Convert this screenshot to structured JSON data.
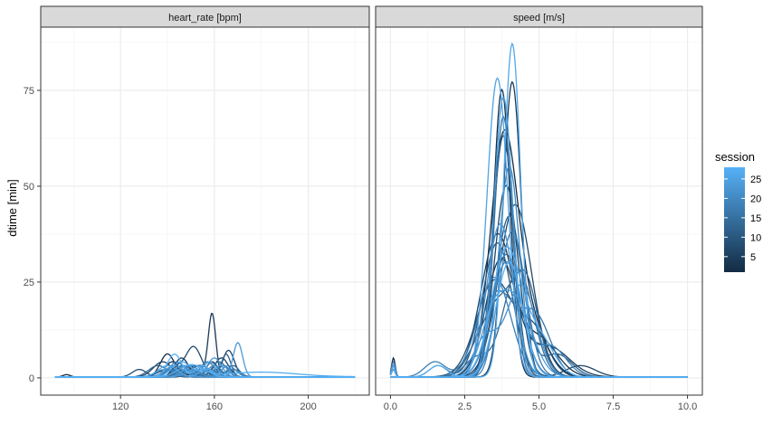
{
  "chart_data": {
    "type": "line",
    "title": "",
    "ylabel": "dtime [min]",
    "xlabel": "",
    "grid": true,
    "facets": [
      {
        "label": "heart_rate [bpm]",
        "xlim": [
          86,
          226
        ],
        "ylim": [
          -4.5,
          91.5
        ],
        "x_ticks": [
          120,
          160,
          200
        ],
        "y_ticks": [
          0,
          25,
          50,
          75
        ],
        "x_range": [
          92,
          220
        ],
        "series": [
          {
            "session": 1,
            "base": 0.25,
            "bumps": [
              [
                97,
                1.5,
                0.6
              ],
              [
                140,
                3,
                6
              ],
              [
                154,
                4,
                3
              ]
            ]
          },
          {
            "session": 2,
            "base": 0.2,
            "bumps": [
              [
                142,
                3,
                4
              ],
              [
                156,
                4,
                2
              ],
              [
                168,
                3,
                2
              ]
            ]
          },
          {
            "session": 3,
            "base": 0.2,
            "bumps": [
              [
                146,
                3,
                5
              ],
              [
                159,
                2.5,
                4
              ]
            ]
          },
          {
            "session": 4,
            "base": 0.2,
            "bumps": [
              [
                159,
                1.6,
                16.5
              ],
              [
                152,
                3,
                3
              ]
            ]
          },
          {
            "session": 5,
            "base": 0.2,
            "bumps": [
              [
                150,
                3,
                3
              ],
              [
                163,
                3,
                5
              ]
            ]
          },
          {
            "session": 6,
            "base": 0.2,
            "bumps": [
              [
                138,
                4,
                4
              ],
              [
                166,
                2.5,
                7
              ]
            ]
          },
          {
            "session": 7,
            "base": 0.2,
            "bumps": [
              [
                151,
                3.5,
                8
              ],
              [
                144,
                2,
                2
              ]
            ]
          },
          {
            "session": 8,
            "base": 0.2,
            "bumps": [
              [
                128,
                3,
                2
              ],
              [
                148,
                3,
                3
              ]
            ]
          },
          {
            "session": 9,
            "base": 0.2,
            "bumps": [
              [
                144,
                3,
                4
              ],
              [
                161,
                3,
                2
              ]
            ]
          },
          {
            "session": 10,
            "base": 0.2,
            "bumps": [
              [
                140,
                4,
                2
              ],
              [
                155,
                3,
                3
              ]
            ]
          },
          {
            "session": 11,
            "base": 0.2,
            "bumps": [
              [
                165,
                2,
                6
              ],
              [
                150,
                3,
                2
              ]
            ]
          },
          {
            "session": 12,
            "base": 0.2,
            "bumps": [
              [
                136,
                4,
                3
              ],
              [
                158,
                3,
                2
              ]
            ]
          },
          {
            "session": 13,
            "base": 0.2,
            "bumps": [
              [
                147,
                3,
                3
              ],
              [
                168,
                2.5,
                3
              ]
            ]
          },
          {
            "session": 14,
            "base": 0.2,
            "bumps": [
              [
                142,
                3,
                2
              ],
              [
                162,
                3,
                4
              ]
            ]
          },
          {
            "session": 15,
            "base": 0.2,
            "bumps": [
              [
                153,
                3,
                3
              ],
              [
                145,
                2,
                1.5
              ]
            ]
          },
          {
            "session": 16,
            "base": 0.2,
            "bumps": [
              [
                150,
                4,
                2
              ],
              [
                164,
                2.5,
                3
              ]
            ]
          },
          {
            "session": 17,
            "base": 0.2,
            "bumps": [
              [
                141,
                3,
                2
              ],
              [
                157,
                3,
                4
              ]
            ]
          },
          {
            "session": 18,
            "base": 0.2,
            "bumps": [
              [
                146,
                3,
                3
              ],
              [
                168,
                3,
                2
              ]
            ]
          },
          {
            "session": 19,
            "base": 0.2,
            "bumps": [
              [
                139,
                4,
                2
              ],
              [
                160,
                3,
                3
              ]
            ]
          },
          {
            "session": 20,
            "base": 0.2,
            "bumps": [
              [
                144,
                3,
                4
              ],
              [
                155,
                3,
                2
              ]
            ]
          },
          {
            "session": 21,
            "base": 0.2,
            "bumps": [
              [
                150,
                3,
                3
              ],
              [
                166,
                3,
                3
              ]
            ]
          },
          {
            "session": 22,
            "base": 0.2,
            "bumps": [
              [
                160,
                3,
                5
              ],
              [
                148,
                3,
                2
              ]
            ]
          },
          {
            "session": 23,
            "base": 0.2,
            "bumps": [
              [
                143,
                4,
                3
              ],
              [
                170,
                2,
                9
              ]
            ]
          },
          {
            "session": 24,
            "base": 0.2,
            "bumps": [
              [
                152,
                4,
                2
              ],
              [
                163,
                3,
                3
              ]
            ]
          },
          {
            "session": 25,
            "base": 0.2,
            "bumps": [
              [
                140,
                4,
                3
              ],
              [
                158,
                3,
                4
              ]
            ]
          },
          {
            "session": 26,
            "base": 0.2,
            "bumps": [
              [
                146,
                4,
                4
              ],
              [
                157,
                3,
                2
              ]
            ]
          },
          {
            "session": 27,
            "base": 0.3,
            "bumps": [
              [
                150,
                5,
                3
              ],
              [
                180,
                15,
                1.2
              ]
            ]
          },
          {
            "session": 28,
            "base": 0.2,
            "bumps": [
              [
                143,
                3,
                6
              ],
              [
                155,
                3,
                3
              ]
            ]
          }
        ]
      },
      {
        "label": "speed [m/s]",
        "xlim": [
          -0.5,
          10.5
        ],
        "ylim": [
          -4.5,
          91.5
        ],
        "x_ticks": [
          0.0,
          2.5,
          5.0,
          7.5,
          10.0
        ],
        "y_ticks": [
          0,
          25,
          50,
          75
        ],
        "x_ticks_labels": [
          "0.0",
          "2.5",
          "5.0",
          "7.5",
          "10.0"
        ],
        "x_range": [
          0,
          10
        ],
        "series": [
          {
            "session": 1,
            "base": 0.2,
            "bumps": [
              [
                0.1,
                0.06,
                5
              ],
              [
                3.8,
                0.45,
                58
              ],
              [
                4.6,
                0.6,
                15
              ]
            ]
          },
          {
            "session": 2,
            "base": 0.2,
            "bumps": [
              [
                0.1,
                0.06,
                3
              ],
              [
                3.75,
                0.28,
                75
              ]
            ]
          },
          {
            "session": 3,
            "base": 0.2,
            "bumps": [
              [
                0.1,
                0.06,
                2
              ],
              [
                3.7,
                0.5,
                30
              ],
              [
                5.0,
                0.6,
                10
              ]
            ]
          },
          {
            "session": 4,
            "base": 0.2,
            "bumps": [
              [
                0.1,
                0.06,
                4
              ],
              [
                4.1,
                0.3,
                77
              ]
            ]
          },
          {
            "session": 5,
            "base": 0.2,
            "bumps": [
              [
                3.6,
                0.55,
                37
              ],
              [
                5.3,
                0.7,
                8
              ]
            ]
          },
          {
            "session": 6,
            "base": 0.2,
            "bumps": [
              [
                0.1,
                0.06,
                3
              ],
              [
                3.9,
                0.4,
                50
              ],
              [
                6.4,
                0.5,
                3
              ]
            ]
          },
          {
            "session": 7,
            "base": 0.2,
            "bumps": [
              [
                4.2,
                0.55,
                45
              ]
            ]
          },
          {
            "session": 8,
            "base": 0.2,
            "bumps": [
              [
                0.1,
                0.06,
                2
              ],
              [
                3.5,
                0.6,
                25
              ],
              [
                4.8,
                0.5,
                12
              ]
            ]
          },
          {
            "session": 9,
            "base": 0.2,
            "bumps": [
              [
                3.8,
                0.35,
                63
              ]
            ]
          },
          {
            "session": 10,
            "base": 0.2,
            "bumps": [
              [
                0.1,
                0.06,
                3
              ],
              [
                3.6,
                0.5,
                35
              ],
              [
                1.6,
                0.3,
                3
              ]
            ]
          },
          {
            "session": 11,
            "base": 0.2,
            "bumps": [
              [
                4.0,
                0.45,
                42
              ],
              [
                5.6,
                0.5,
                6
              ]
            ]
          },
          {
            "session": 12,
            "base": 0.2,
            "bumps": [
              [
                3.7,
                0.7,
                20
              ],
              [
                4.6,
                0.4,
                18
              ]
            ]
          },
          {
            "session": 13,
            "base": 0.2,
            "bumps": [
              [
                0.1,
                0.06,
                2
              ],
              [
                3.9,
                0.5,
                32
              ]
            ]
          },
          {
            "session": 14,
            "base": 0.2,
            "bumps": [
              [
                4.3,
                0.5,
                28
              ],
              [
                2.9,
                0.4,
                5
              ]
            ]
          },
          {
            "session": 15,
            "base": 0.2,
            "bumps": [
              [
                3.8,
                0.3,
                68
              ]
            ]
          },
          {
            "session": 16,
            "base": 0.2,
            "bumps": [
              [
                0.1,
                0.06,
                3
              ],
              [
                3.6,
                0.6,
                22
              ],
              [
                4.9,
                0.5,
                15
              ]
            ]
          },
          {
            "session": 17,
            "base": 0.2,
            "bumps": [
              [
                4.1,
                0.45,
                38
              ]
            ]
          },
          {
            "session": 18,
            "base": 0.2,
            "bumps": [
              [
                3.5,
                0.55,
                26
              ],
              [
                1.5,
                0.35,
                4
              ]
            ]
          },
          {
            "session": 19,
            "base": 0.2,
            "bumps": [
              [
                3.9,
                0.5,
                30
              ],
              [
                5.4,
                0.5,
                8
              ]
            ]
          },
          {
            "session": 20,
            "base": 0.2,
            "bumps": [
              [
                0.1,
                0.06,
                4
              ],
              [
                4.0,
                0.35,
                55
              ]
            ]
          },
          {
            "session": 21,
            "base": 0.2,
            "bumps": [
              [
                4.4,
                0.5,
                24
              ],
              [
                3.2,
                0.4,
                10
              ]
            ]
          },
          {
            "session": 22,
            "base": 0.2,
            "bumps": [
              [
                3.7,
                0.45,
                40
              ]
            ]
          },
          {
            "session": 23,
            "base": 0.2,
            "bumps": [
              [
                3.8,
                0.32,
                73
              ]
            ]
          },
          {
            "session": 24,
            "base": 0.2,
            "bumps": [
              [
                0.1,
                0.06,
                3
              ],
              [
                4.2,
                0.55,
                20
              ],
              [
                3.4,
                0.4,
                12
              ]
            ]
          },
          {
            "session": 25,
            "base": 0.2,
            "bumps": [
              [
                3.6,
                0.35,
                78
              ]
            ]
          },
          {
            "session": 26,
            "base": 0.2,
            "bumps": [
              [
                4.1,
                0.28,
                87
              ]
            ]
          },
          {
            "session": 27,
            "base": 0.2,
            "bumps": [
              [
                0.1,
                0.06,
                2
              ],
              [
                3.9,
                0.5,
                33
              ],
              [
                5.0,
                0.5,
                10
              ]
            ]
          },
          {
            "session": 28,
            "base": 0.2,
            "bumps": [
              [
                4.0,
                0.45,
                30
              ],
              [
                1.6,
                0.3,
                3
              ]
            ]
          }
        ]
      }
    ],
    "legend": {
      "title": "session",
      "placement": "right",
      "range": [
        1,
        28
      ],
      "ticks": [
        5,
        10,
        15,
        20,
        25
      ],
      "color_low": "#132B43",
      "color_high": "#56B1F7"
    }
  }
}
